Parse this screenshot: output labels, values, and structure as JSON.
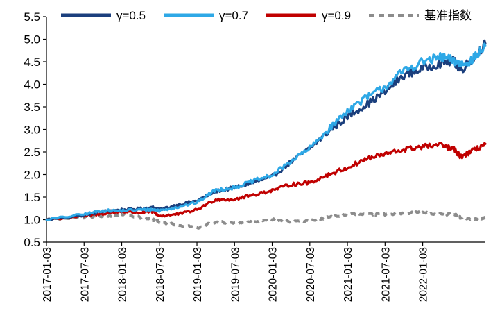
{
  "chart_data": {
    "type": "line",
    "title": "",
    "xlabel": "",
    "ylabel": "",
    "ylim": [
      0.5,
      5.5
    ],
    "yticks": [
      "0.5",
      "1.0",
      "1.5",
      "2.0",
      "2.5",
      "3.0",
      "3.5",
      "4.0",
      "4.5",
      "5.0",
      "5.5"
    ],
    "xticks": [
      "2017-01-03",
      "2017-07-03",
      "2018-01-03",
      "2018-07-03",
      "2019-01-03",
      "2019-07-03",
      "2020-01-03",
      "2020-07-03",
      "2021-01-03",
      "2021-07-03",
      "2022-01-03"
    ],
    "x_range_months": [
      0,
      70
    ],
    "legend_position": "top",
    "series": [
      {
        "name": "γ=0.5",
        "color": "#1b3f7d",
        "style": "solid",
        "points": [
          [
            0,
            1.0
          ],
          [
            6,
            1.1
          ],
          [
            9,
            1.18
          ],
          [
            12,
            1.22
          ],
          [
            15,
            1.24
          ],
          [
            17,
            1.27
          ],
          [
            18,
            1.22
          ],
          [
            21,
            1.33
          ],
          [
            24,
            1.42
          ],
          [
            27,
            1.63
          ],
          [
            30,
            1.71
          ],
          [
            33,
            1.82
          ],
          [
            36,
            1.95
          ],
          [
            39,
            2.28
          ],
          [
            42,
            2.58
          ],
          [
            45,
            2.95
          ],
          [
            48,
            3.28
          ],
          [
            51,
            3.55
          ],
          [
            54,
            3.83
          ],
          [
            57,
            4.2
          ],
          [
            60,
            4.35
          ],
          [
            63,
            4.48
          ],
          [
            65,
            4.52
          ],
          [
            66,
            4.3
          ],
          [
            68,
            4.58
          ],
          [
            70,
            4.9
          ]
        ]
      },
      {
        "name": "γ=0.7",
        "color": "#2ea8e6",
        "style": "solid",
        "points": [
          [
            0,
            1.0
          ],
          [
            6,
            1.12
          ],
          [
            9,
            1.2
          ],
          [
            12,
            1.2
          ],
          [
            15,
            1.22
          ],
          [
            17,
            1.22
          ],
          [
            18,
            1.2
          ],
          [
            21,
            1.28
          ],
          [
            24,
            1.38
          ],
          [
            27,
            1.66
          ],
          [
            30,
            1.71
          ],
          [
            33,
            1.86
          ],
          [
            36,
            1.98
          ],
          [
            39,
            2.3
          ],
          [
            42,
            2.58
          ],
          [
            45,
            3.0
          ],
          [
            48,
            3.42
          ],
          [
            51,
            3.7
          ],
          [
            54,
            3.95
          ],
          [
            57,
            4.3
          ],
          [
            60,
            4.5
          ],
          [
            63,
            4.6
          ],
          [
            65,
            4.52
          ],
          [
            66,
            4.45
          ],
          [
            68,
            4.55
          ],
          [
            70,
            4.85
          ]
        ]
      },
      {
        "name": "γ=0.9",
        "color": "#c00000",
        "style": "solid",
        "points": [
          [
            0,
            1.0
          ],
          [
            6,
            1.08
          ],
          [
            9,
            1.13
          ],
          [
            12,
            1.18
          ],
          [
            15,
            1.15
          ],
          [
            17,
            1.18
          ],
          [
            18,
            1.08
          ],
          [
            21,
            1.12
          ],
          [
            24,
            1.22
          ],
          [
            27,
            1.45
          ],
          [
            30,
            1.45
          ],
          [
            33,
            1.55
          ],
          [
            36,
            1.65
          ],
          [
            39,
            1.78
          ],
          [
            42,
            1.82
          ],
          [
            45,
            2.0
          ],
          [
            48,
            2.15
          ],
          [
            51,
            2.35
          ],
          [
            54,
            2.45
          ],
          [
            57,
            2.55
          ],
          [
            60,
            2.62
          ],
          [
            63,
            2.65
          ],
          [
            65,
            2.55
          ],
          [
            66,
            2.4
          ],
          [
            68,
            2.52
          ],
          [
            70,
            2.68
          ]
        ]
      },
      {
        "name": "基准指数",
        "color": "#8c8c8c",
        "style": "dashed",
        "points": [
          [
            0,
            1.0
          ],
          [
            6,
            1.05
          ],
          [
            9,
            1.08
          ],
          [
            12,
            1.12
          ],
          [
            15,
            1.05
          ],
          [
            17,
            1.0
          ],
          [
            18,
            0.95
          ],
          [
            21,
            0.88
          ],
          [
            24,
            0.82
          ],
          [
            27,
            0.95
          ],
          [
            30,
            0.92
          ],
          [
            33,
            0.95
          ],
          [
            36,
            1.0
          ],
          [
            39,
            0.95
          ],
          [
            42,
            0.98
          ],
          [
            45,
            1.05
          ],
          [
            48,
            1.12
          ],
          [
            51,
            1.12
          ],
          [
            54,
            1.12
          ],
          [
            57,
            1.15
          ],
          [
            60,
            1.15
          ],
          [
            63,
            1.12
          ],
          [
            65,
            1.12
          ],
          [
            66,
            1.05
          ],
          [
            68,
            1.0
          ],
          [
            70,
            1.05
          ]
        ]
      }
    ]
  }
}
